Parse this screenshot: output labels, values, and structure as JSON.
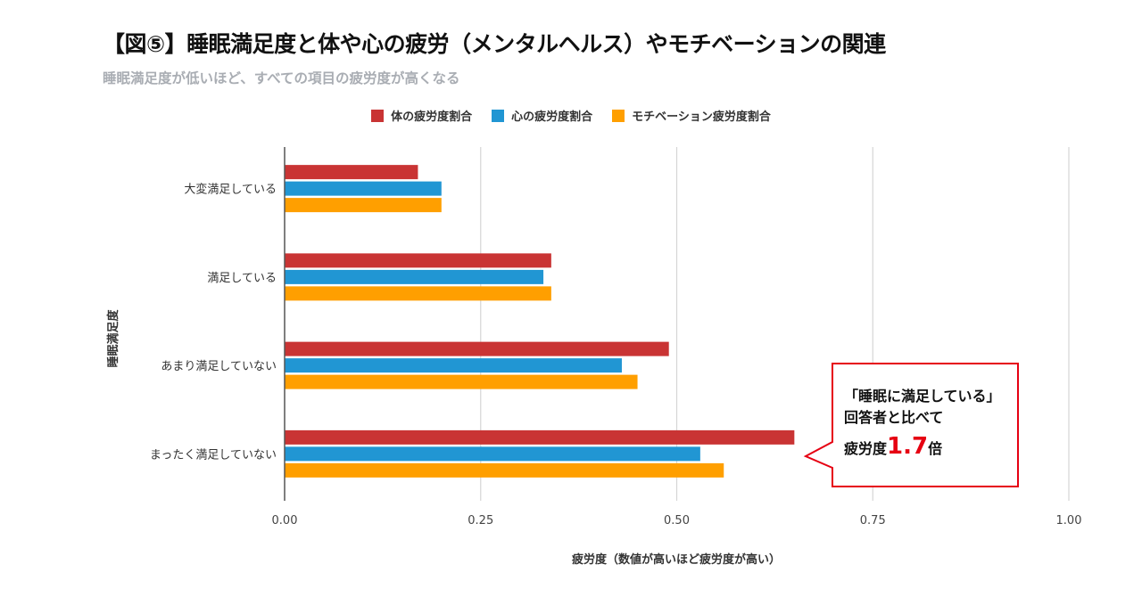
{
  "title": "【図⑤】睡眠満足度と体や心の疲労（メンタルヘルス）やモチベーションの関連",
  "subtitle": "睡眠満足度が低いほど、すべての項目の疲労度が高くなる",
  "legend": [
    {
      "name": "体の疲労度割合",
      "color": "#c93434"
    },
    {
      "name": "心の疲労度割合",
      "color": "#2196d3"
    },
    {
      "name": "モチベーション疲労度割合",
      "color": "#ff9f00"
    }
  ],
  "callout": {
    "line1": "「睡眠に満足している」",
    "line2": "回答者と比べて",
    "line3_prefix": "疲労度",
    "line3_value": "1.7",
    "line3_suffix": "倍"
  },
  "chart_data": {
    "type": "bar",
    "orientation": "horizontal",
    "categories": [
      "大変満足している",
      "満足している",
      "あまり満足していない",
      "まったく満足していない"
    ],
    "series": [
      {
        "name": "体の疲労度割合",
        "color": "#c93434",
        "values": [
          0.17,
          0.34,
          0.49,
          0.65
        ]
      },
      {
        "name": "心の疲労度割合",
        "color": "#2196d3",
        "values": [
          0.2,
          0.33,
          0.43,
          0.53
        ]
      },
      {
        "name": "モチベーション疲労度割合",
        "color": "#ff9f00",
        "values": [
          0.2,
          0.34,
          0.45,
          0.56
        ]
      }
    ],
    "xticks": [
      "0.00",
      "0.25",
      "0.50",
      "0.75",
      "1.00"
    ],
    "xlim": [
      0,
      1
    ],
    "xlabel": "疲労度（数値が高いほど疲労度が高い）",
    "ylabel": "睡眠満足度",
    "grid": "vertical",
    "legend_position": "top"
  }
}
